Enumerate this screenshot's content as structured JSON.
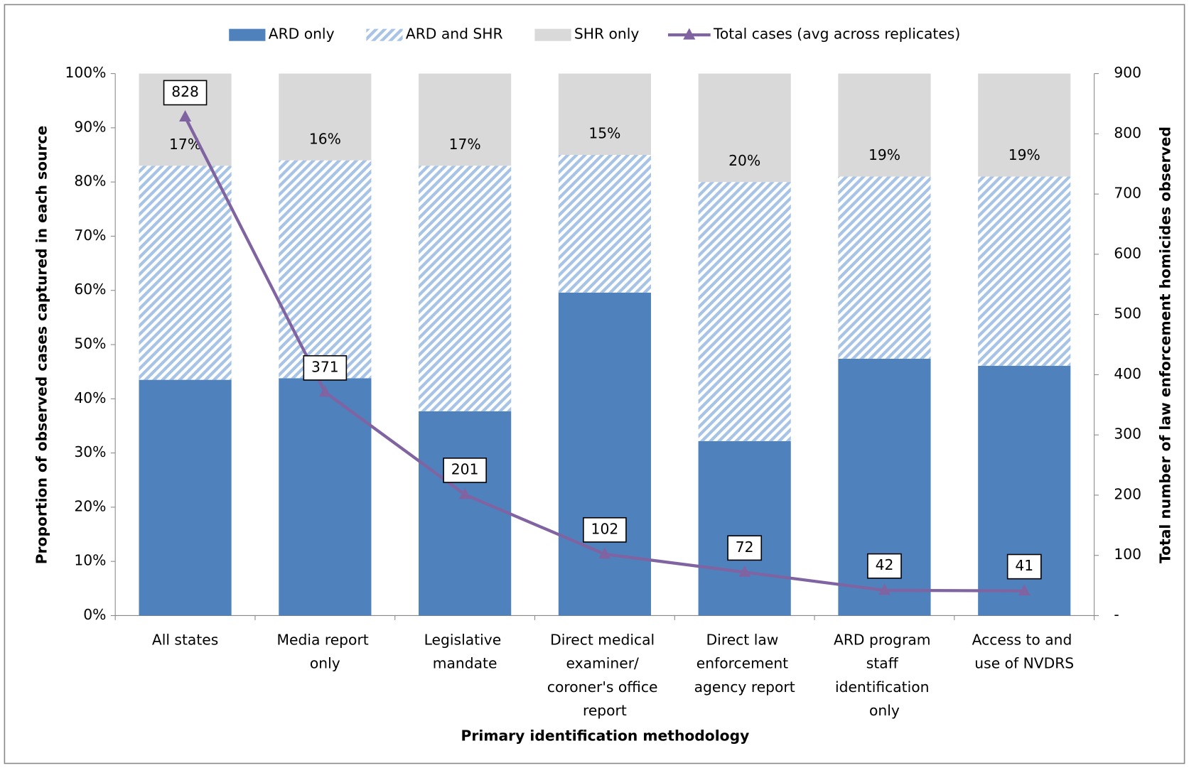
{
  "chart_data": {
    "type": "stacked-bar-line",
    "x_label": "Primary identification methodology",
    "y_label": "Proportion of observed cases captured in each source",
    "y2_label": "Total number of law enforcement homicides observed",
    "categories": [
      "All states",
      "Media report only",
      "Legislative mandate",
      "Direct medical examiner/ coroner's office report",
      "Direct law enforcement agency report",
      "ARD program staff identification only",
      "Access to and use of NVDRS"
    ],
    "series": [
      {
        "name": "ARD only",
        "color": "#4f81bd",
        "values": [
          43.5,
          43.8,
          37.7,
          59.6,
          32.2,
          47.4,
          46.1
        ]
      },
      {
        "name": "ARD and SHR",
        "color": "#a7c4e6",
        "pattern": "hatch",
        "values": [
          39.5,
          40.2,
          45.3,
          25.4,
          47.8,
          33.6,
          34.9
        ]
      },
      {
        "name": "SHR only",
        "color": "#d9d9d9",
        "values": [
          17,
          16,
          17,
          15,
          20,
          19,
          19
        ],
        "value_labels": [
          "17%",
          "16%",
          "17%",
          "15%",
          "20%",
          "19%",
          "19%"
        ]
      },
      {
        "name": "Total cases (avg across replicates)",
        "color": "#8064a2",
        "type": "line",
        "axis": "y2",
        "values": [
          828,
          371,
          201,
          102,
          72,
          42,
          41
        ]
      }
    ],
    "ylim": [
      0,
      100
    ],
    "yticks": [
      {
        "value": 0,
        "label": "0%"
      },
      {
        "value": 10,
        "label": "10%"
      },
      {
        "value": 20,
        "label": "20%"
      },
      {
        "value": 30,
        "label": "30%"
      },
      {
        "value": 40,
        "label": "40%"
      },
      {
        "value": 50,
        "label": "50%"
      },
      {
        "value": 60,
        "label": "60%"
      },
      {
        "value": 70,
        "label": "70%"
      },
      {
        "value": 80,
        "label": "80%"
      },
      {
        "value": 90,
        "label": "90%"
      },
      {
        "value": 100,
        "label": "100%"
      }
    ],
    "y2lim": [
      0,
      900
    ],
    "y2ticks": [
      {
        "value": 0,
        "label": "-"
      },
      100,
      200,
      300,
      400,
      500,
      600,
      700,
      800,
      900
    ],
    "legend": "top",
    "grid": false
  }
}
